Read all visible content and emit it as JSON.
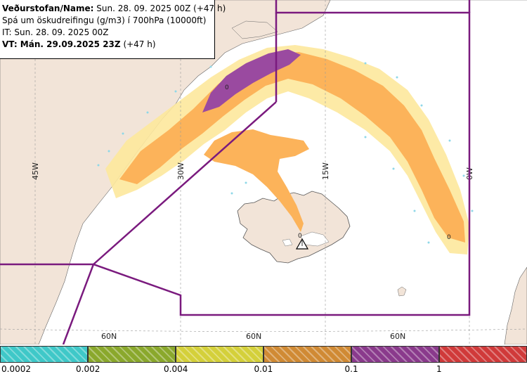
{
  "header": {
    "line1_label": "Veðurstofan/Name:",
    "line1_value": "Sun. 28. 09. 2025 00Z (+47 h)",
    "line2": "Spá um öskudreifingu (g/m3) í 700hPa (10000ft)",
    "line3": "IT: Sun. 28. 09. 2025 00Z",
    "line4_label": "VT: Mán. 29.09.2025 23Z",
    "line4_value": "(+47 h)"
  },
  "grid_labels": {
    "lon_45w": "45W",
    "lon_30w": "30W",
    "lon_15w": "15W",
    "lon_0w": "0W",
    "lat_a": "60N",
    "lat_b": "60N",
    "lat_c": "60N"
  },
  "plume_markers": {
    "marker_a": "0",
    "marker_b": "0",
    "marker_c": "0"
  },
  "legend": {
    "ticks": [
      "0.0002",
      "0.002",
      "0.004",
      "0.01",
      "0.1",
      "1"
    ],
    "colors": [
      "#3fc8c8",
      "#8aa82c",
      "#d4d03a",
      "#d08a34",
      "#8a3a8c",
      "#d03a3a"
    ]
  },
  "colors": {
    "ocean": "#ffffff",
    "land": "#f2e4d8",
    "boundary": "#7a1a7e",
    "ash_light": "#fde89c",
    "ash_orange": "#fcb35a",
    "ash_purple": "#9a4aa0"
  },
  "icons": [
    "volcano-icon"
  ]
}
